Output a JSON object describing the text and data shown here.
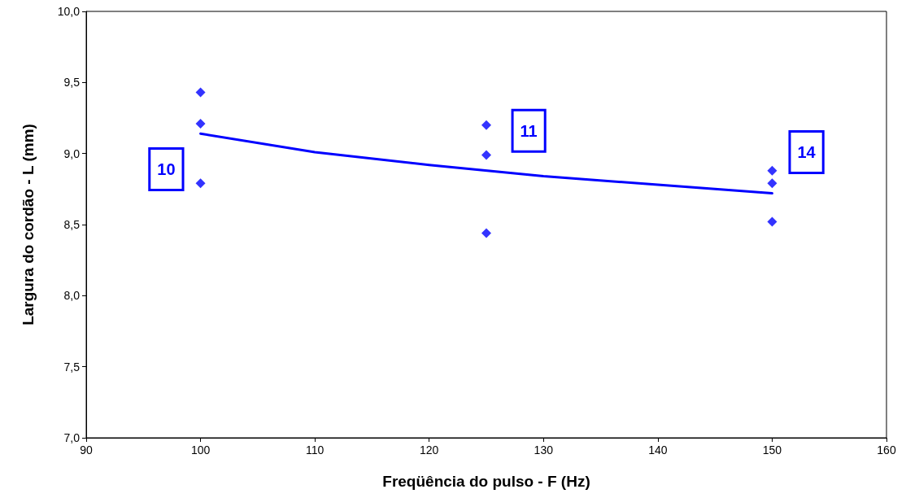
{
  "chart_data": {
    "type": "scatter",
    "xlabel": "Freqüência do pulso - F (Hz)",
    "ylabel": "Largura do cordão - L (mm)",
    "series": [
      {
        "color": "#0000ff",
        "marker": "diamond",
        "x": [
          100,
          100,
          100,
          125,
          125,
          125,
          150,
          150,
          150
        ],
        "values": [
          9.43,
          9.21,
          8.79,
          9.2,
          8.99,
          8.44,
          8.88,
          8.79,
          8.52
        ]
      },
      {
        "type": "line",
        "color": "#0000ff",
        "marker": "none",
        "line_style": "solid",
        "x": [
          100,
          110,
          120,
          130,
          140,
          150
        ],
        "values": [
          9.14,
          9.01,
          8.92,
          8.84,
          8.78,
          8.72
        ]
      }
    ],
    "xlim": [
      90,
      160
    ],
    "xticks": [
      90,
      100,
      110,
      120,
      130,
      140,
      150,
      160
    ],
    "ylim": [
      7.0,
      10.0
    ],
    "yticks": [
      {
        "value": 7.0,
        "label": "7,0"
      },
      {
        "value": 7.5,
        "label": "7,5"
      },
      {
        "value": 8.0,
        "label": "8,0"
      },
      {
        "value": 8.5,
        "label": "8,5"
      },
      {
        "value": 9.0,
        "label": "9,0"
      },
      {
        "value": 9.5,
        "label": "9,5"
      },
      {
        "value": 10.0,
        "label": "10,0"
      }
    ],
    "annotations": [
      "10",
      "11",
      "14"
    ],
    "grid": false
  }
}
